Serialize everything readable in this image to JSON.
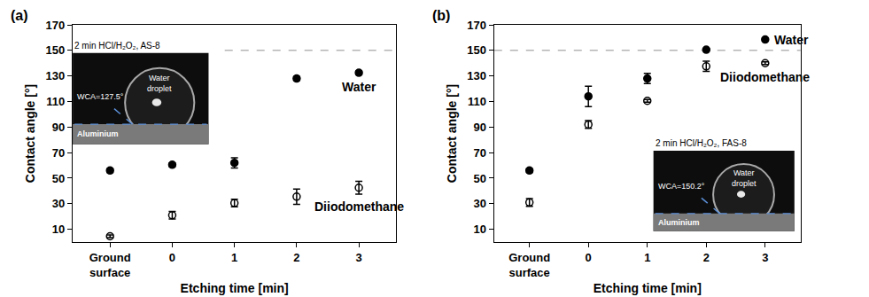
{
  "chart_data": [
    {
      "type": "scatter",
      "panel": "(a)",
      "categories": [
        "Ground surface",
        "0",
        "1",
        "2",
        "3"
      ],
      "x_label": "Etching time [min]",
      "y_label": "Contact angle [°]",
      "ylim": [
        0,
        170
      ],
      "yticks": [
        10,
        30,
        50,
        70,
        90,
        110,
        130,
        150,
        170
      ],
      "grid": false,
      "hline": 150,
      "series": [
        {
          "name": "Water",
          "color": "#000000",
          "marker": "circle",
          "values": [
            56,
            60.5,
            62,
            128,
            132.5
          ],
          "errors": [
            1.5,
            1.5,
            4,
            1.5,
            1.5
          ]
        },
        {
          "name": "Diiodomethane",
          "color": "#000000",
          "marker": "circle-open",
          "values": [
            4.5,
            21,
            30.5,
            35.5,
            42.5
          ],
          "errors": [
            1,
            3,
            3,
            6,
            5
          ]
        }
      ],
      "inset": {
        "caption": "2 min HCl/H₂O₂, AS-8",
        "droplet": "Water droplet",
        "angle": "WCA=127.5°",
        "substrate": "Aluminium"
      }
    },
    {
      "type": "scatter",
      "panel": "(b)",
      "categories": [
        "Ground surface",
        "0",
        "1",
        "2",
        "3"
      ],
      "x_label": "Etching time [min]",
      "y_label": "Contact angle [°]",
      "ylim": [
        0,
        170
      ],
      "yticks": [
        10,
        30,
        50,
        70,
        90,
        110,
        130,
        150,
        170
      ],
      "grid": false,
      "hline": 150,
      "series": [
        {
          "name": "Water",
          "color": "#000000",
          "marker": "circle",
          "values": [
            56,
            114,
            128,
            150.5,
            158.5
          ],
          "errors": [
            1.5,
            8,
            4,
            1,
            1
          ]
        },
        {
          "name": "Diiodomethane",
          "color": "#000000",
          "marker": "circle-open",
          "values": [
            31,
            92,
            110.5,
            137.5,
            140
          ],
          "errors": [
            3,
            3,
            1,
            4,
            1
          ]
        }
      ],
      "inset": {
        "caption": "2 min HCl/H₂O₂, FAS-8",
        "droplet": "Water droplet",
        "angle": "WCA=150.2°",
        "substrate": "Aluminium"
      }
    }
  ]
}
